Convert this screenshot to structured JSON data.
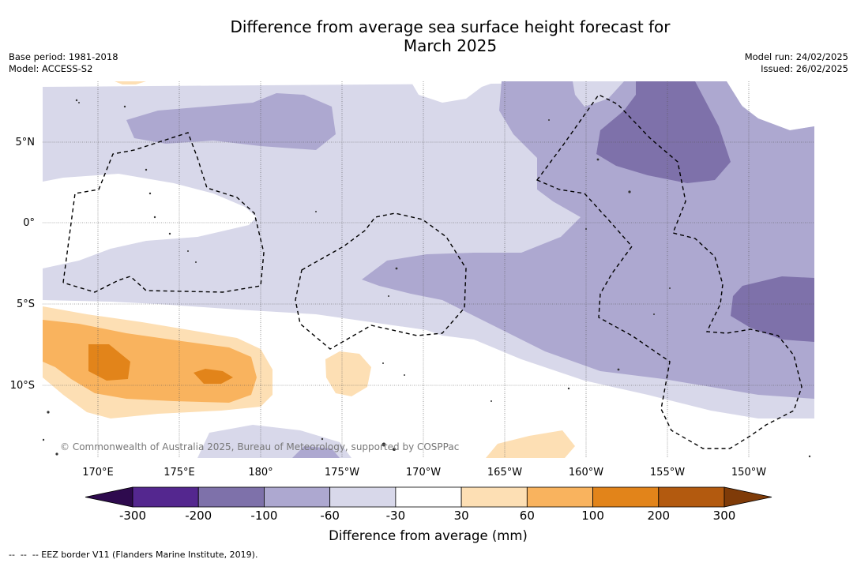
{
  "title": "Difference from average sea surface height forecast for\nMarch 2025",
  "meta_left": {
    "base_period": "Base period: 1981-2018",
    "model": "Model: ACCESS-S2"
  },
  "meta_right": {
    "model_run": "Model run: 24/02/2025",
    "issued": "Issued: 26/02/2025"
  },
  "map": {
    "lat_labels": [
      "5°N",
      "0°",
      "5°S",
      "10°S"
    ],
    "lon_labels": [
      "170°E",
      "175°E",
      "180°",
      "175°W",
      "170°W",
      "165°W",
      "160°W",
      "155°W",
      "150°W"
    ],
    "credit": "© Commonwealth of Australia 2025, Bureau of Meteorology, supported by COSPPac",
    "overlay": "EEZ border V11 (dashed)"
  },
  "colorbar": {
    "title": "Difference from average (mm)",
    "tick_labels": [
      "-300",
      "-200",
      "-100",
      "-60",
      "-30",
      "30",
      "60",
      "100",
      "200",
      "300"
    ],
    "colors": [
      "#2e0a4e",
      "#54278f",
      "#7e71aa",
      "#ada8d0",
      "#d8d8ea",
      "#ffffff",
      "#fddfb4",
      "#f9b35e",
      "#e2841a",
      "#b35a0f",
      "#7f3b08"
    ]
  },
  "footnote": "--  --  -- EEZ border V11 (Flanders Marine Institute, 2019)."
}
